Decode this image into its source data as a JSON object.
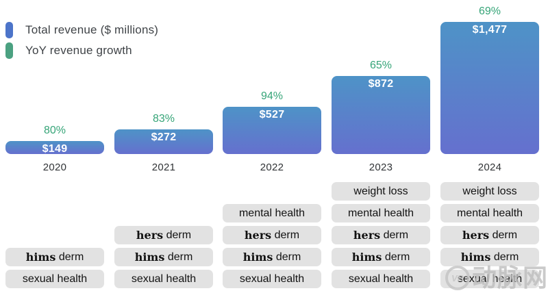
{
  "legend": {
    "items": [
      {
        "label": "Total revenue ($ millions)",
        "color": "#4c74c9",
        "icon": "blue-bar-swatch"
      },
      {
        "label": "YoY revenue growth",
        "color": "#4ba181",
        "icon": "green-bar-swatch"
      }
    ]
  },
  "chart_data": {
    "type": "bar",
    "title": "",
    "categories": [
      "2020",
      "2021",
      "2022",
      "2023",
      "2024"
    ],
    "series": [
      {
        "name": "Total revenue ($ millions)",
        "values": [
          149,
          272,
          527,
          872,
          1477
        ],
        "labels": [
          "$149",
          "$272",
          "$527",
          "$872",
          "$1,477"
        ],
        "color_top": "#4e93c7",
        "color_bottom": "#6570ce"
      },
      {
        "name": "YoY revenue growth",
        "values": [
          80,
          83,
          94,
          65,
          69
        ],
        "labels": [
          "80%",
          "83%",
          "94%",
          "65%",
          "69%"
        ],
        "unit": "%",
        "color": "#35a477"
      }
    ],
    "ylim": [
      0,
      1477
    ],
    "grid": false,
    "legend_position": "top-left",
    "columns": [
      {
        "year": "2020",
        "growth_label": "80%",
        "revenue_label": "$149",
        "segments": [
          {
            "bold": "hims",
            "text": " derm"
          },
          {
            "bold": "",
            "text": "sexual health"
          }
        ]
      },
      {
        "year": "2021",
        "growth_label": "83%",
        "revenue_label": "$272",
        "segments": [
          {
            "bold": "hers",
            "text": " derm"
          },
          {
            "bold": "hims",
            "text": " derm"
          },
          {
            "bold": "",
            "text": "sexual health"
          }
        ]
      },
      {
        "year": "2022",
        "growth_label": "94%",
        "revenue_label": "$527",
        "segments": [
          {
            "bold": "",
            "text": "mental health"
          },
          {
            "bold": "hers",
            "text": " derm"
          },
          {
            "bold": "hims",
            "text": " derm"
          },
          {
            "bold": "",
            "text": "sexual health"
          }
        ]
      },
      {
        "year": "2023",
        "growth_label": "65%",
        "revenue_label": "$872",
        "segments": [
          {
            "bold": "",
            "text": "weight loss"
          },
          {
            "bold": "",
            "text": "mental health"
          },
          {
            "bold": "hers",
            "text": " derm"
          },
          {
            "bold": "hims",
            "text": " derm"
          },
          {
            "bold": "",
            "text": "sexual health"
          }
        ]
      },
      {
        "year": "2024",
        "growth_label": "69%",
        "revenue_label": "$1,477",
        "segments": [
          {
            "bold": "",
            "text": "weight loss"
          },
          {
            "bold": "",
            "text": "mental health"
          },
          {
            "bold": "hers",
            "text": " derm"
          },
          {
            "bold": "hims",
            "text": " derm"
          },
          {
            "bold": "",
            "text": "sexual health"
          }
        ]
      }
    ]
  },
  "watermark": {
    "logo": "VB",
    "text": "动脉网"
  }
}
